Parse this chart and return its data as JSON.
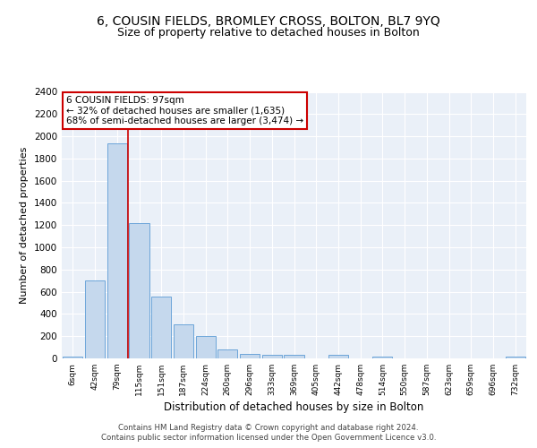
{
  "title1": "6, COUSIN FIELDS, BROMLEY CROSS, BOLTON, BL7 9YQ",
  "title2": "Size of property relative to detached houses in Bolton",
  "xlabel": "Distribution of detached houses by size in Bolton",
  "ylabel": "Number of detached properties",
  "bar_labels": [
    "6sqm",
    "42sqm",
    "79sqm",
    "115sqm",
    "151sqm",
    "187sqm",
    "224sqm",
    "260sqm",
    "296sqm",
    "333sqm",
    "369sqm",
    "405sqm",
    "442sqm",
    "478sqm",
    "514sqm",
    "550sqm",
    "587sqm",
    "623sqm",
    "659sqm",
    "696sqm",
    "732sqm"
  ],
  "bar_values": [
    20,
    700,
    1940,
    1220,
    560,
    305,
    200,
    80,
    40,
    30,
    30,
    0,
    30,
    0,
    20,
    0,
    0,
    0,
    0,
    0,
    20
  ],
  "bar_color": "#c5d8ed",
  "bar_edge_color": "#5b9bd5",
  "vline_x": 2.5,
  "vline_color": "#cc0000",
  "annotation_title": "6 COUSIN FIELDS: 97sqm",
  "annotation_line1": "← 32% of detached houses are smaller (1,635)",
  "annotation_line2": "68% of semi-detached houses are larger (3,474) →",
  "annotation_box_color": "#ffffff",
  "annotation_box_edge": "#cc0000",
  "ylim": [
    0,
    2400
  ],
  "yticks": [
    0,
    200,
    400,
    600,
    800,
    1000,
    1200,
    1400,
    1600,
    1800,
    2000,
    2200,
    2400
  ],
  "footer1": "Contains HM Land Registry data © Crown copyright and database right 2024.",
  "footer2": "Contains public sector information licensed under the Open Government Licence v3.0.",
  "bg_color": "#eaf0f8",
  "plot_bg_color": "#eaf0f8",
  "grid_color": "#ffffff",
  "title1_fontsize": 10,
  "title2_fontsize": 9
}
